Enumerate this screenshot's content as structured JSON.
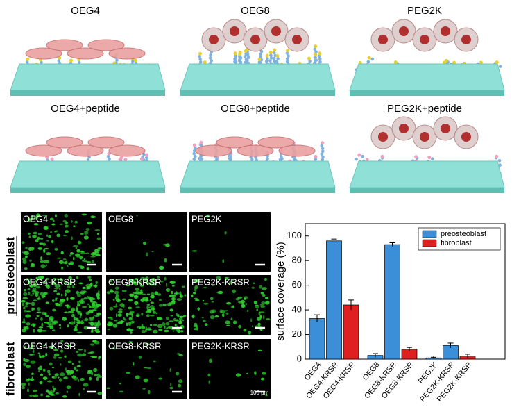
{
  "schematics": {
    "labels": [
      "OEG4",
      "OEG8",
      "PEG2K",
      "OEG4+peptide",
      "OEG8+peptide",
      "PEG2K+peptide"
    ]
  },
  "micrographs": {
    "row_labels": [
      "preosteoblast",
      "fibroblast"
    ],
    "panels": [
      [
        "OEG4",
        "OEG8",
        "PEG2K"
      ],
      [
        "OEG4-KRSR",
        "OEG8-KRSR",
        "PEG2K-KRSR"
      ],
      [
        "OEG4-KRSR",
        "OEG8-KRSR",
        "PEG2K-KRSR"
      ]
    ],
    "scale_bar": "100 µm"
  },
  "chart_data": {
    "type": "bar",
    "y_label": "surface coverage (%)",
    "categories": [
      "OEG4",
      "OEG4-KRSR",
      "OEG4-KRSR",
      "OEG8",
      "OEG8-KRSR",
      "OEG8-KRSR",
      "PEG2K",
      "PEG2K-KRSR",
      "PEG2K-KRSR"
    ],
    "series": [
      {
        "name": "preosteoblast",
        "color": "#3a8fd8",
        "values": [
          33,
          96,
          null,
          3,
          93,
          null,
          1,
          11,
          null
        ],
        "errors": [
          3,
          1.5,
          null,
          1.5,
          1.5,
          null,
          0.5,
          2,
          null
        ]
      },
      {
        "name": "fibroblast",
        "color": "#e02020",
        "values": [
          null,
          null,
          44,
          null,
          null,
          8,
          null,
          null,
          2.5
        ],
        "errors": [
          null,
          null,
          4,
          null,
          null,
          1.5,
          null,
          null,
          1.5
        ]
      }
    ],
    "ylim": [
      0,
      110
    ],
    "yticks": [
      0,
      20,
      40,
      60,
      80,
      100
    ],
    "legend": "upper right"
  }
}
